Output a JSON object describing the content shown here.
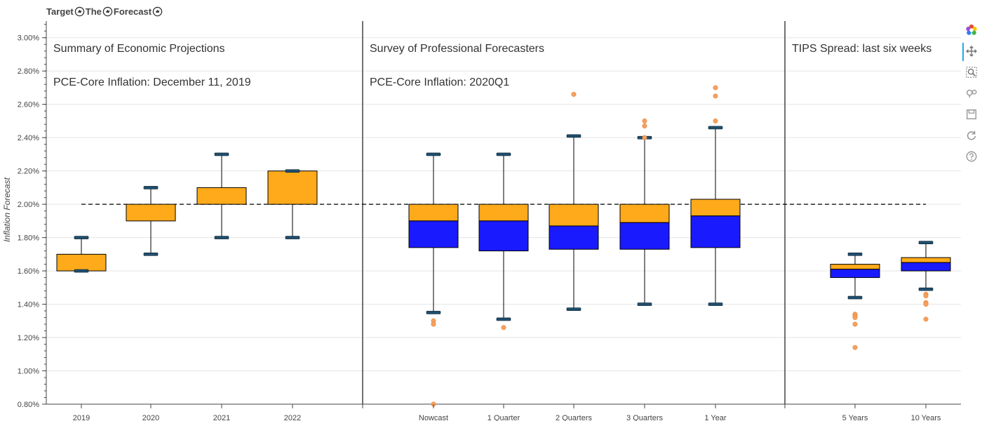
{
  "header": {
    "title_parts": [
      "Target",
      "The",
      "Forecast"
    ],
    "hand_icon": "pointing-hand-icon"
  },
  "colors": {
    "upper_box": "#ffaa1a",
    "lower_box": "#1a1aff",
    "outlier": "#f5a05f",
    "whisker_cap": "#1f4e6e",
    "target_line": "#000000"
  },
  "toolbar": {
    "tools": [
      "bokeh-logo-icon",
      "pan-icon",
      "box-zoom-icon",
      "wheel-zoom-icon",
      "save-icon",
      "reset-icon",
      "help-icon"
    ]
  },
  "chart_data": {
    "type": "box",
    "ylabel": "Inflation Forecast",
    "ylim": [
      0.8,
      3.1
    ],
    "yticks": [
      "0.80%",
      "1.00%",
      "1.20%",
      "1.40%",
      "1.60%",
      "1.80%",
      "2.00%",
      "2.20%",
      "2.40%",
      "2.60%",
      "2.80%",
      "3.00%"
    ],
    "target": 2.0,
    "grid": true,
    "panels": [
      {
        "title": "Summary of Economic Projections",
        "subtitle": "PCE-Core Inflation: December 11, 2019",
        "categories": [
          "2019",
          "2020",
          "2021",
          "2022"
        ],
        "boxes": [
          {
            "low": 1.6,
            "q1": 1.6,
            "median": 1.6,
            "q3": 1.7,
            "high": 1.8,
            "outliers": []
          },
          {
            "low": 1.7,
            "q1": 1.9,
            "median": 1.9,
            "q3": 2.0,
            "high": 2.1,
            "outliers": []
          },
          {
            "low": 1.8,
            "q1": 2.0,
            "median": 2.0,
            "q3": 2.1,
            "high": 2.3,
            "outliers": []
          },
          {
            "low": 1.8,
            "q1": 2.0,
            "median": 2.0,
            "q3": 2.2,
            "high": 2.2,
            "outliers": []
          }
        ]
      },
      {
        "title": "Survey of Professional Forecasters",
        "subtitle": "PCE-Core Inflation: 2020Q1",
        "categories": [
          "Nowcast",
          "1 Quarter",
          "2 Quarters",
          "3 Quarters",
          "1 Year"
        ],
        "boxes": [
          {
            "low": 1.35,
            "q1": 1.74,
            "median": 1.9,
            "q3": 2.0,
            "high": 2.3,
            "outliers": [
              1.3,
              1.28,
              0.8
            ]
          },
          {
            "low": 1.31,
            "q1": 1.72,
            "median": 1.9,
            "q3": 2.0,
            "high": 2.3,
            "outliers": [
              1.26
            ]
          },
          {
            "low": 1.37,
            "q1": 1.73,
            "median": 1.87,
            "q3": 2.0,
            "high": 2.41,
            "outliers": [
              2.66
            ]
          },
          {
            "low": 1.4,
            "q1": 1.73,
            "median": 1.89,
            "q3": 2.0,
            "high": 2.4,
            "outliers": [
              2.5,
              2.47,
              2.4
            ]
          },
          {
            "low": 1.4,
            "q1": 1.74,
            "median": 1.93,
            "q3": 2.03,
            "high": 2.46,
            "outliers": [
              2.7,
              2.65,
              2.5
            ]
          }
        ]
      },
      {
        "title": "TIPS Spread: last six weeks",
        "subtitle": "",
        "categories": [
          "5 Years",
          "10 Years"
        ],
        "boxes": [
          {
            "low": 1.44,
            "q1": 1.56,
            "median": 1.61,
            "q3": 1.64,
            "high": 1.7,
            "outliers": [
              1.34,
              1.33,
              1.32,
              1.28,
              1.14
            ]
          },
          {
            "low": 1.49,
            "q1": 1.6,
            "median": 1.65,
            "q3": 1.68,
            "high": 1.77,
            "outliers": [
              1.46,
              1.45,
              1.41,
              1.4,
              1.31
            ]
          }
        ]
      }
    ]
  }
}
